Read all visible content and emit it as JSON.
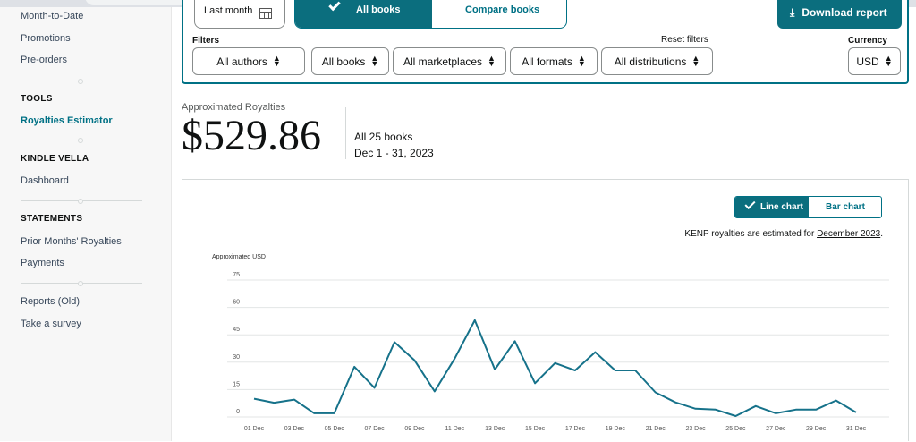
{
  "sidebar": {
    "links_top": [
      "Month-to-Date",
      "Promotions",
      "Pre-orders"
    ],
    "tools_heading": "TOOLS",
    "tools_items": [
      "Royalties Estimator"
    ],
    "vella_heading": "KINDLE VELLA",
    "vella_items": [
      "Dashboard"
    ],
    "statements_heading": "STATEMENTS",
    "statements_items": [
      "Prior Months' Royalties",
      "Payments"
    ],
    "other_items": [
      "Reports (Old)",
      "Take a survey"
    ]
  },
  "toolbar": {
    "date_range": "Last month",
    "all_books": "All books",
    "compare_books": "Compare books",
    "download": "Download report"
  },
  "filters": {
    "label": "Filters",
    "reset": "Reset filters",
    "currency_label": "Currency",
    "authors": "All authors",
    "books": "All books",
    "marketplaces": "All marketplaces",
    "formats": "All formats",
    "distributions": "All distributions",
    "currency": "USD"
  },
  "summary": {
    "label": "Approximated Royalties",
    "amount": "$529.86",
    "books": "All 25 books",
    "range": "Dec 1 - 31, 2023"
  },
  "chart_toggle": {
    "line": "Line chart",
    "bar": "Bar chart"
  },
  "kenp_note": {
    "text": "KENP royalties are estimated for ",
    "link": "December 2023",
    "suffix": "."
  },
  "colors": {
    "accent": "#0b6e7e",
    "line": "#16728a"
  },
  "chart_data": {
    "type": "line",
    "ylabel": "Approximated USD",
    "ylim": [
      0,
      75
    ],
    "yticks": [
      0,
      15,
      30,
      45,
      60,
      75
    ],
    "grid": true,
    "x": [
      "01 Dec",
      "02 Dec",
      "03 Dec",
      "04 Dec",
      "05 Dec",
      "06 Dec",
      "07 Dec",
      "08 Dec",
      "09 Dec",
      "10 Dec",
      "11 Dec",
      "12 Dec",
      "13 Dec",
      "14 Dec",
      "15 Dec",
      "16 Dec",
      "17 Dec",
      "18 Dec",
      "19 Dec",
      "20 Dec",
      "21 Dec",
      "22 Dec",
      "23 Dec",
      "24 Dec",
      "25 Dec",
      "26 Dec",
      "27 Dec",
      "28 Dec",
      "29 Dec",
      "30 Dec",
      "31 Dec"
    ],
    "xtick_labels": [
      "01 Dec",
      "03 Dec",
      "05 Dec",
      "07 Dec",
      "09 Dec",
      "11 Dec",
      "13 Dec",
      "15 Dec",
      "17 Dec",
      "19 Dec",
      "21 Dec",
      "23 Dec",
      "25 Dec",
      "27 Dec",
      "29 Dec",
      "31 Dec"
    ],
    "series": [
      {
        "values": [
          10,
          7.8,
          9.5,
          2,
          2,
          27.5,
          16,
          41,
          31,
          14,
          32,
          53,
          26,
          41.5,
          18.5,
          29.5,
          25.5,
          35.5,
          25.5,
          25.5,
          13.5,
          8,
          4.5,
          4,
          0.5,
          6,
          2,
          4,
          4,
          9,
          2.5
        ]
      }
    ]
  }
}
